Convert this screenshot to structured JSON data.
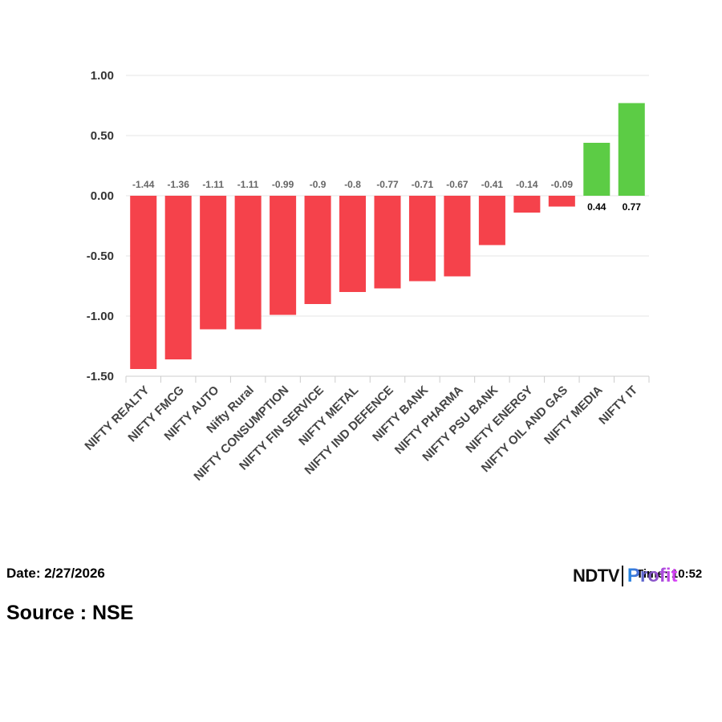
{
  "chart_data": {
    "type": "bar",
    "categories": [
      "NIFTY REALTY",
      "NIFTY FMCG",
      "NIFTY AUTO",
      "Nifty Rural",
      "NIFTY CONSUMPTION",
      "NIFTY FIN SERVICE",
      "NIFTY METAL",
      "NIFTY IND DEFENCE",
      "NIFTY BANK",
      "NIFTY PHARMA",
      "NIFTY PSU BANK",
      "NIFTY ENERGY",
      "NIFTY OIL AND GAS",
      "NIFTY MEDIA",
      "NIFTY IT"
    ],
    "values": [
      -1.44,
      -1.36,
      -1.11,
      -1.11,
      -0.99,
      -0.9,
      -0.8,
      -0.77,
      -0.71,
      -0.67,
      -0.41,
      -0.14,
      -0.09,
      0.44,
      0.77
    ],
    "data_labels": [
      "-1.44",
      "-1.36",
      "-1.11",
      "-1.11",
      "-0.99",
      "-0.9",
      "-0.8",
      "-0.77",
      "-0.71",
      "-0.67",
      "-0.41",
      "-0.14",
      "-0.09",
      "0.44",
      "0.77"
    ],
    "title": "",
    "xlabel": "",
    "ylabel": "",
    "ylim": [
      -1.5,
      1.0
    ],
    "yticks": [
      "1.00",
      "0.50",
      "0.00",
      "-0.50",
      "-1.00",
      "-1.50"
    ],
    "ytick_values": [
      1.0,
      0.5,
      0.0,
      -0.5,
      -1.0,
      -1.5
    ],
    "grid": true,
    "legend": "none",
    "colors": {
      "negative": "#f5424b",
      "positive": "#5ccc45",
      "grid": "#e6e6e6",
      "axis": "#cccccc"
    }
  },
  "footer": {
    "date": "Date: 2/27/2026",
    "source": "Source : NSE",
    "time": "Time: 10:52"
  },
  "logo": {
    "brand": "NDTV",
    "product": "Profit"
  }
}
